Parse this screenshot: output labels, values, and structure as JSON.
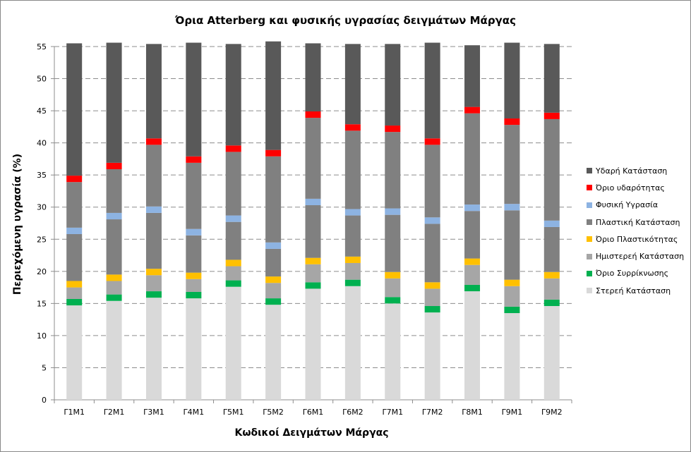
{
  "chart_data": {
    "type": "bar",
    "stacked": true,
    "title": "Όρια Atterberg και φυσικής υγρασίας δειγμάτων Μάργας",
    "xlabel": "Κωδικοί Δειγμάτων Μάργας",
    "ylabel": "Περιεχόμενη υγρασία (%)",
    "ylim": [
      0,
      55
    ],
    "yticks": [
      0,
      5,
      10,
      15,
      20,
      25,
      30,
      35,
      40,
      45,
      50,
      55
    ],
    "grid": true,
    "legend_position": "right",
    "categories": [
      "Γ1Μ1",
      "Γ2Μ1",
      "Γ3Μ1",
      "Γ4Μ1",
      "Γ5Μ1",
      "Γ5Μ2",
      "Γ6Μ1",
      "Γ6Μ2",
      "Γ7Μ1",
      "Γ7Μ2",
      "Γ8Μ1",
      "Γ9Μ1",
      "Γ9Μ2"
    ],
    "series": [
      {
        "name": "Στερεή Κατάσταση",
        "color": "#d9d9d9",
        "values": [
          14.7,
          15.4,
          15.9,
          15.8,
          17.6,
          14.8,
          17.3,
          17.7,
          15.0,
          13.6,
          16.9,
          13.5,
          14.6
        ]
      },
      {
        "name": "Όριο Συρρίκνωσης",
        "color": "#00b050",
        "values": [
          1.0,
          1.0,
          1.0,
          1.0,
          1.0,
          1.0,
          1.0,
          1.0,
          1.0,
          1.0,
          1.0,
          1.0,
          1.0
        ]
      },
      {
        "name": "Ημιστερεή Κατάσταση",
        "color": "#a6a6a6",
        "values": [
          1.8,
          2.1,
          2.5,
          2.0,
          2.2,
          2.4,
          2.8,
          2.6,
          2.9,
          2.7,
          3.1,
          3.2,
          3.3
        ]
      },
      {
        "name": "Όριο Πλαστικότητας",
        "color": "#ffc000",
        "values": [
          1.0,
          1.0,
          1.0,
          1.0,
          1.0,
          1.0,
          1.0,
          1.0,
          1.0,
          1.0,
          1.0,
          1.0,
          1.0
        ]
      },
      {
        "name": "Πλαστική Κατάσταση",
        "color": "#808080",
        "values": [
          7.3,
          8.6,
          8.7,
          5.8,
          5.9,
          4.3,
          8.2,
          6.4,
          8.9,
          9.1,
          7.4,
          10.8,
          7.0
        ]
      },
      {
        "name": "Φυσική Υγρασία",
        "color": "#8db3e2",
        "values": [
          1.0,
          1.0,
          1.0,
          1.0,
          1.0,
          1.0,
          1.0,
          1.0,
          1.0,
          1.0,
          1.0,
          1.0,
          1.0
        ]
      },
      {
        "name": "Πλαστική Κατάσταση",
        "color": "#808080",
        "values": [
          7.1,
          6.8,
          9.6,
          10.3,
          9.9,
          13.4,
          12.6,
          12.2,
          11.9,
          11.3,
          14.2,
          12.3,
          15.8
        ]
      },
      {
        "name": "Όριο υδαρότητας",
        "color": "#ff0000",
        "values": [
          1.0,
          1.0,
          1.0,
          1.0,
          1.0,
          1.0,
          1.0,
          1.0,
          1.0,
          1.0,
          1.0,
          1.0,
          1.0
        ]
      },
      {
        "name": "Υδαρή Κατάσταση",
        "color": "#595959",
        "values": [
          20.6,
          18.7,
          14.7,
          17.7,
          15.8,
          16.9,
          10.6,
          12.5,
          12.7,
          14.9,
          9.6,
          11.8,
          10.7
        ]
      }
    ]
  },
  "legend": [
    {
      "label": "Υδαρή Κατάσταση",
      "color": "#595959"
    },
    {
      "label": "Όριο υδαρότητας",
      "color": "#ff0000"
    },
    {
      "label": "Φυσική Υγρασία",
      "color": "#8db3e2"
    },
    {
      "label": "Πλαστική Κατάσταση",
      "color": "#808080"
    },
    {
      "label": "Όριο Πλαστικότητας",
      "color": "#ffc000"
    },
    {
      "label": "Ημιστερεή Κατάσταση",
      "color": "#a6a6a6"
    },
    {
      "label": "Όριο Συρρίκνωσης",
      "color": "#00b050"
    },
    {
      "label": "Στερεή Κατάσταση",
      "color": "#d9d9d9"
    }
  ]
}
